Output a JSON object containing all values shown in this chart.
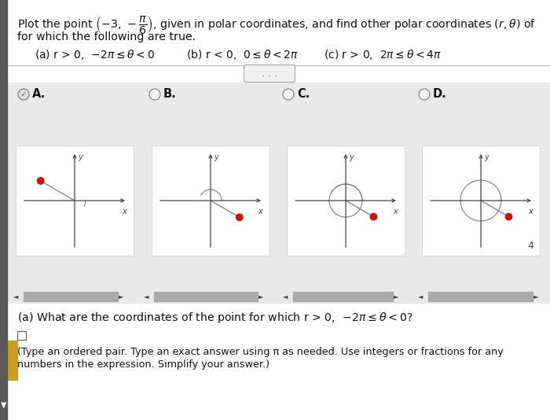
{
  "bg": "#f5f5f5",
  "white": "#ffffff",
  "panel_bg": "#e9e9e9",
  "left_bar": "#5a5a5a",
  "text_color": "#111111",
  "axis_color": "#444444",
  "dot_color": "#cc1100",
  "check_color": "#2a8c2a",
  "scrollbar_color": "#aaaaaa",
  "gold_color": "#c8a020",
  "line_color": "#888888",
  "question_a": "(a) What are the coordinates of the point for which r > 0,  −2π ≤ θ < 0?",
  "hint1": "(Type an ordered pair. Type an exact answer using π as needed. Use integers or fractions for any",
  "hint2": "numbers in the expression. Simplify your answer.)"
}
